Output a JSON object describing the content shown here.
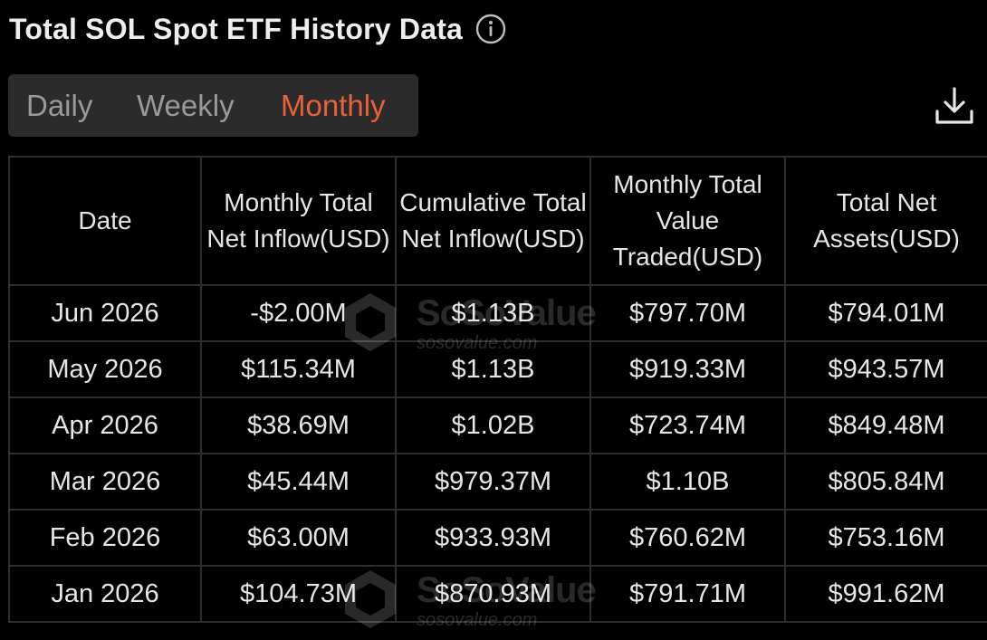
{
  "header": {
    "title": "Total SOL Spot ETF History Data",
    "info_icon": "info-circle-icon"
  },
  "tabs": [
    {
      "label": "Daily",
      "active": false
    },
    {
      "label": "Weekly",
      "active": false
    },
    {
      "label": "Monthly",
      "active": true
    }
  ],
  "download_icon": "download-icon",
  "table": {
    "columns": [
      "Date",
      "Monthly Total Net Inflow(USD)",
      "Cumulative Total Net Inflow(USD)",
      "Monthly Total Value Traded(USD)",
      "Total Net Assets(USD)"
    ],
    "rows": [
      {
        "date": "Jun 2026",
        "net_inflow": "-$2.00M",
        "trend": "negative",
        "cumulative": "$1.13B",
        "traded": "$797.70M",
        "assets": "$794.01M"
      },
      {
        "date": "May 2026",
        "net_inflow": "$115.34M",
        "trend": "positive",
        "cumulative": "$1.13B",
        "traded": "$919.33M",
        "assets": "$943.57M"
      },
      {
        "date": "Apr 2026",
        "net_inflow": "$38.69M",
        "trend": "positive",
        "cumulative": "$1.02B",
        "traded": "$723.74M",
        "assets": "$849.48M"
      },
      {
        "date": "Mar 2026",
        "net_inflow": "$45.44M",
        "trend": "positive",
        "cumulative": "$979.37M",
        "traded": "$1.10B",
        "assets": "$805.84M"
      },
      {
        "date": "Feb 2026",
        "net_inflow": "$63.00M",
        "trend": "positive",
        "cumulative": "$933.93M",
        "traded": "$760.62M",
        "assets": "$753.16M"
      },
      {
        "date": "Jan 2026",
        "net_inflow": "$104.73M",
        "trend": "positive",
        "cumulative": "$870.93M",
        "traded": "$791.71M",
        "assets": "$991.62M"
      }
    ]
  },
  "watermark": {
    "name": "SoSoValue",
    "url": "sosovalue.com"
  },
  "colors": {
    "background": "#000000",
    "accent": "#e8613a",
    "positive": "#3fc06a",
    "negative": "#e5603d",
    "tab_bg": "#2b2b2b",
    "grid": "#2f2f2f"
  }
}
